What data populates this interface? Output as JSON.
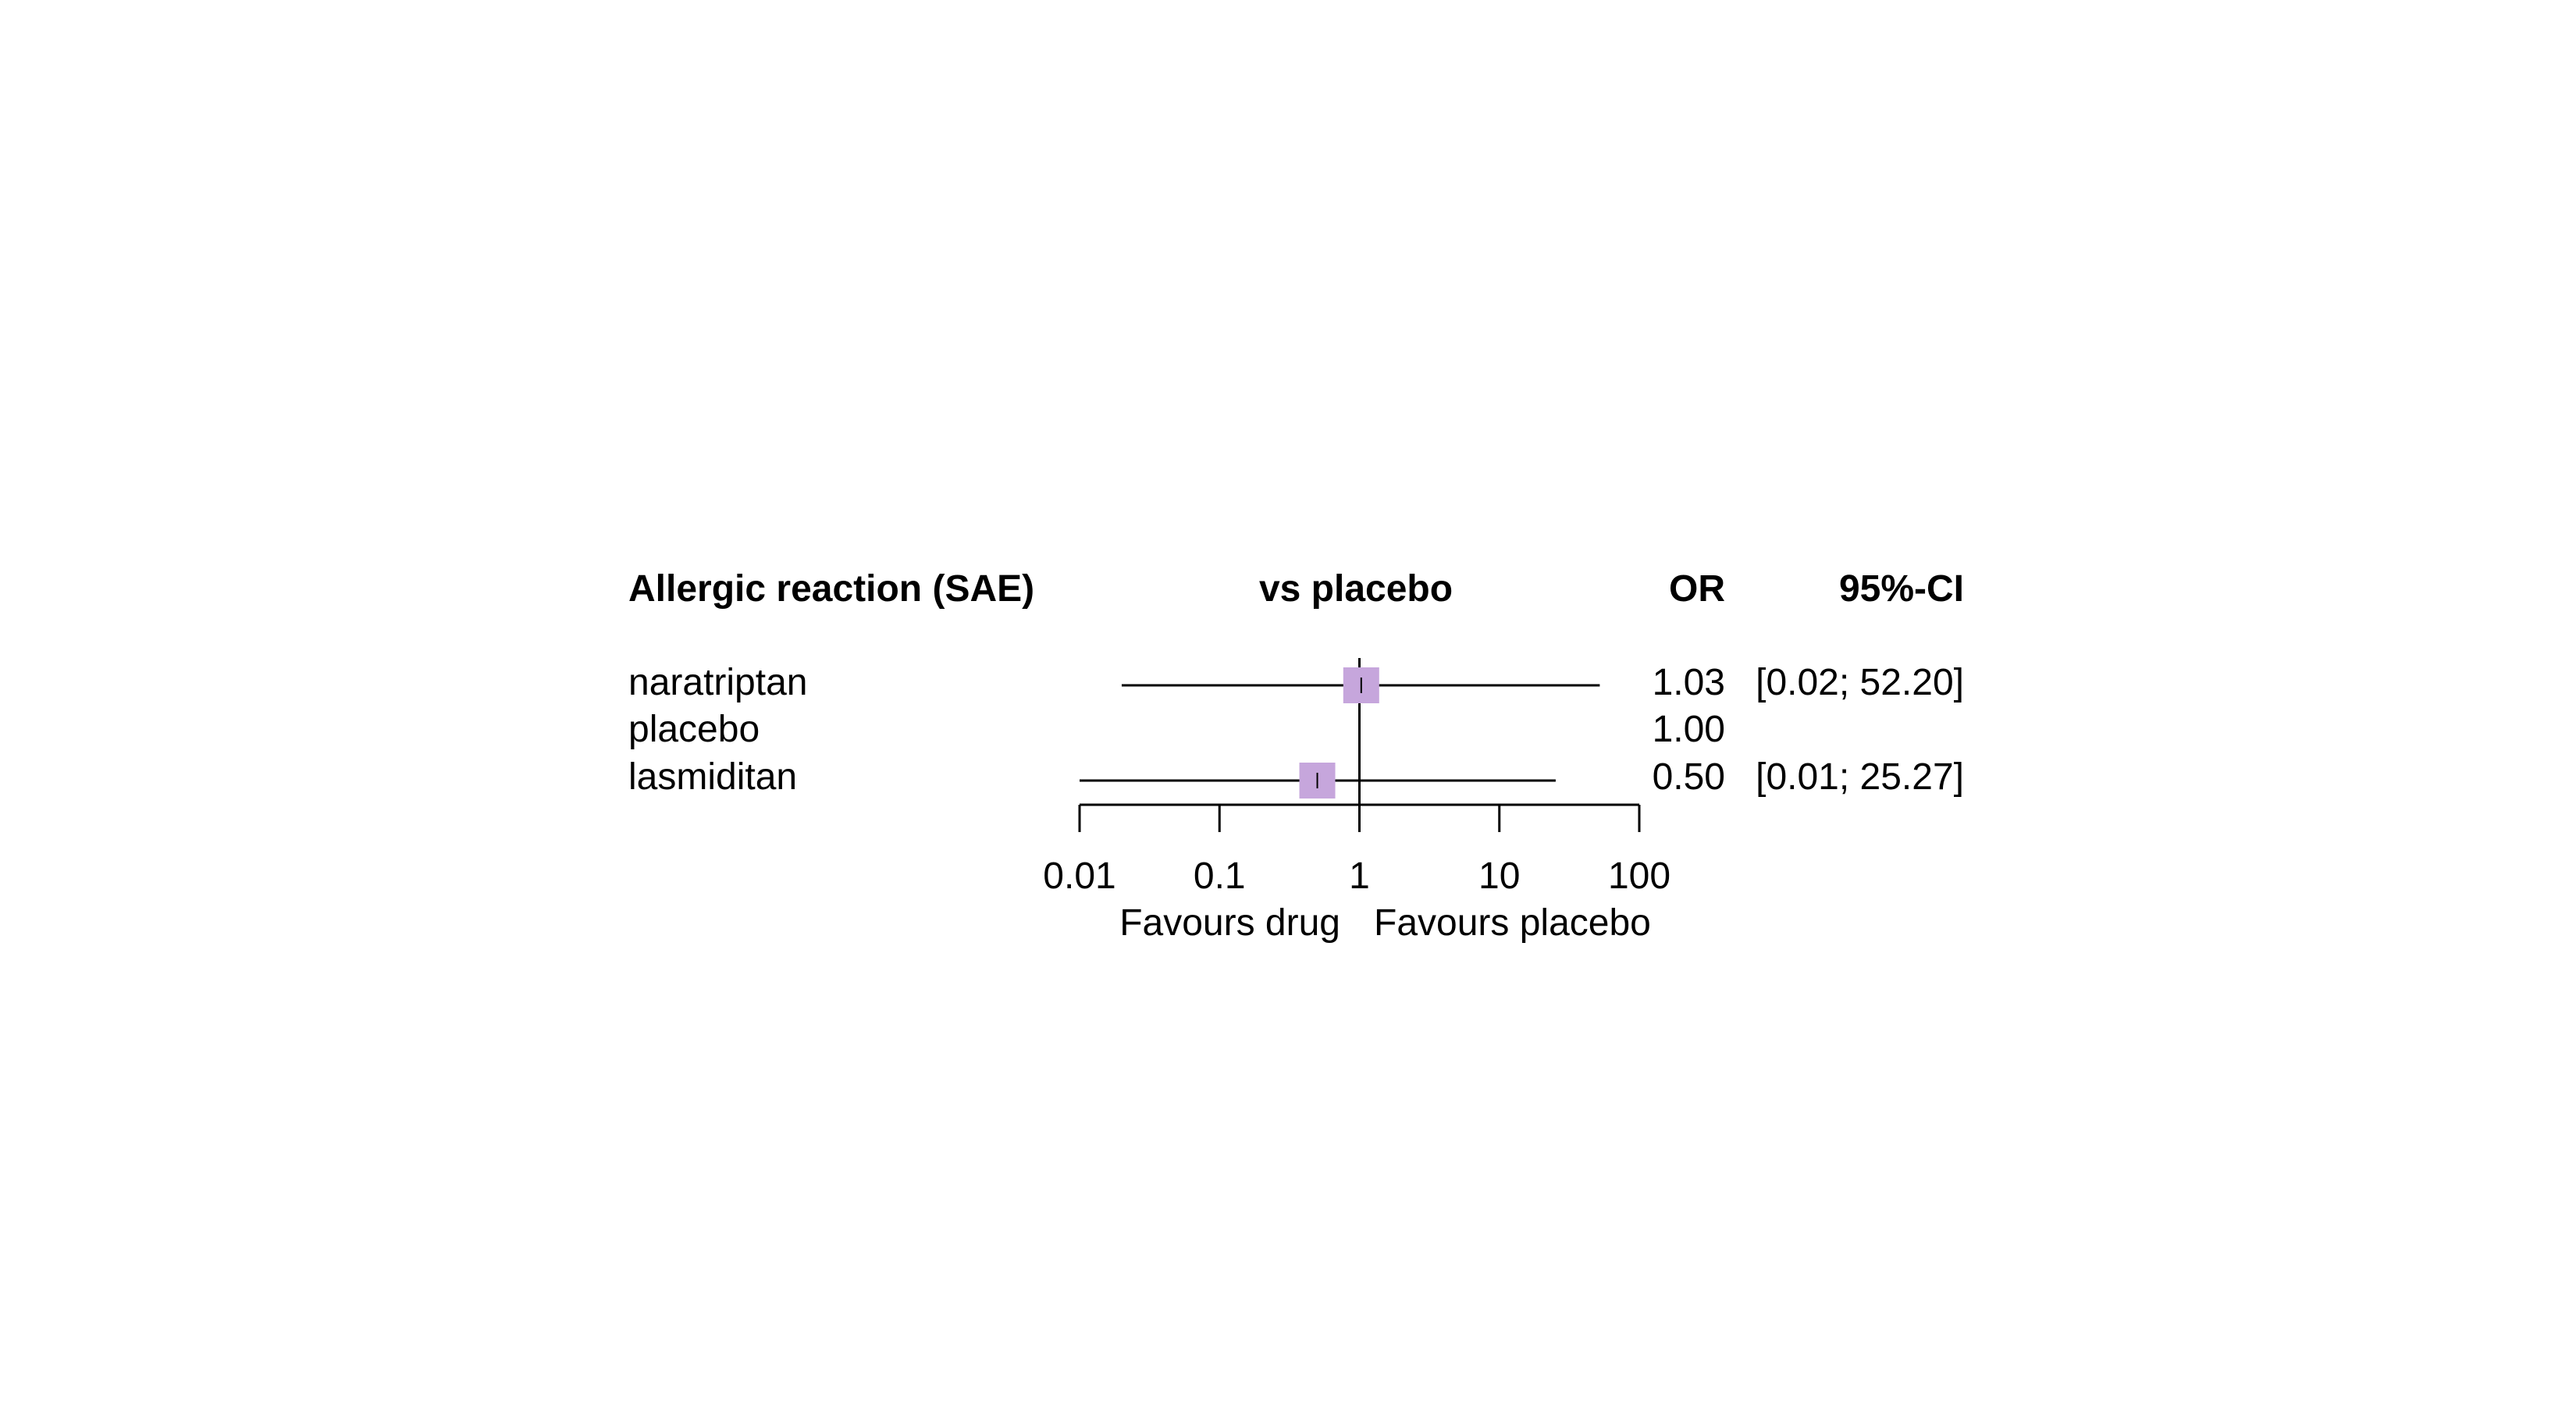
{
  "chart_data": {
    "type": "forest",
    "title": "Allergic reaction (SAE)",
    "comparison_label": "vs placebo",
    "columns": {
      "estimate": "OR",
      "ci": "95%-CI"
    },
    "rows": [
      {
        "label": "naratriptan",
        "or": 1.03,
        "ci_low": 0.02,
        "ci_high": 52.2,
        "or_text": "1.03",
        "ci_text": "[0.02; 52.20]",
        "has_ci": true
      },
      {
        "label": "placebo",
        "or": 1.0,
        "or_text": "1.00",
        "ci_text": "",
        "has_ci": false
      },
      {
        "label": "lasmiditan",
        "or": 0.5,
        "ci_low": 0.01,
        "ci_high": 25.27,
        "or_text": "0.50",
        "ci_text": "[0.01; 25.27]",
        "has_ci": true
      }
    ],
    "x_axis": {
      "scale": "log",
      "range": [
        0.01,
        100
      ],
      "ticks": [
        0.01,
        0.1,
        1,
        10,
        100
      ],
      "tick_labels": [
        "0.01",
        "0.1",
        "1",
        "10",
        "100"
      ],
      "reference_value": 1
    },
    "favours_left": "Favours drug",
    "favours_right": "Favours placebo",
    "marker_color": "#c6a6dc"
  }
}
